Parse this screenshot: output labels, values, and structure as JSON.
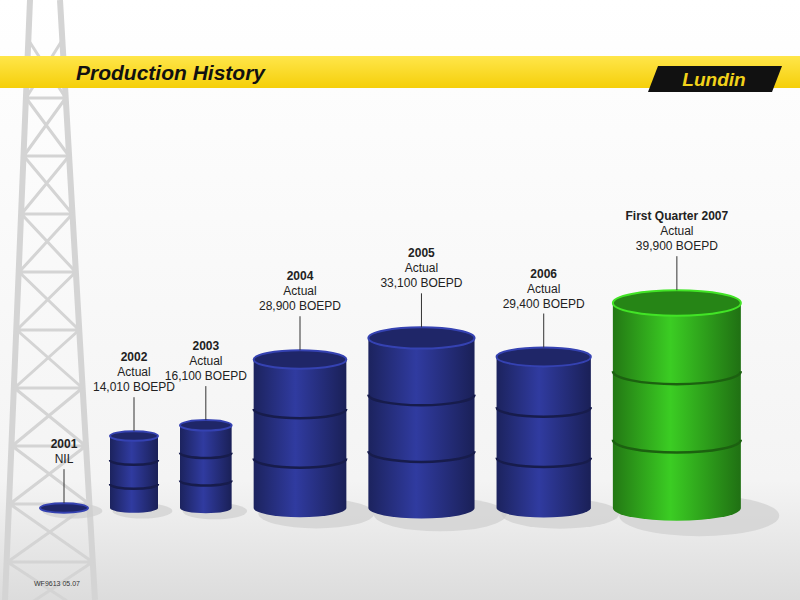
{
  "chart_data": {
    "type": "bar",
    "title": "Production History",
    "categories": [
      "2001",
      "2002",
      "2003",
      "2004",
      "2005",
      "2006",
      "First Quarter 2007"
    ],
    "values": [
      0,
      14010,
      16100,
      28900,
      33100,
      29400,
      39900
    ],
    "value_labels": [
      "NIL",
      "14,010 BOEPD",
      "16,100 BOEPD",
      "28,900 BOEPD",
      "33,100 BOEPD",
      "29,400 BOEPD",
      "39,900 BOEPD"
    ],
    "annotations": [
      null,
      "Actual",
      "Actual",
      "Actual",
      "Actual",
      "Actual",
      "Actual"
    ],
    "colors": [
      "#2b3590",
      "#2b3590",
      "#2b3590",
      "#2b3590",
      "#2b3590",
      "#2b3590",
      "#35b81f"
    ],
    "data_labels": true
  },
  "logo": "Lundin",
  "footer": "WF9613 05.07"
}
